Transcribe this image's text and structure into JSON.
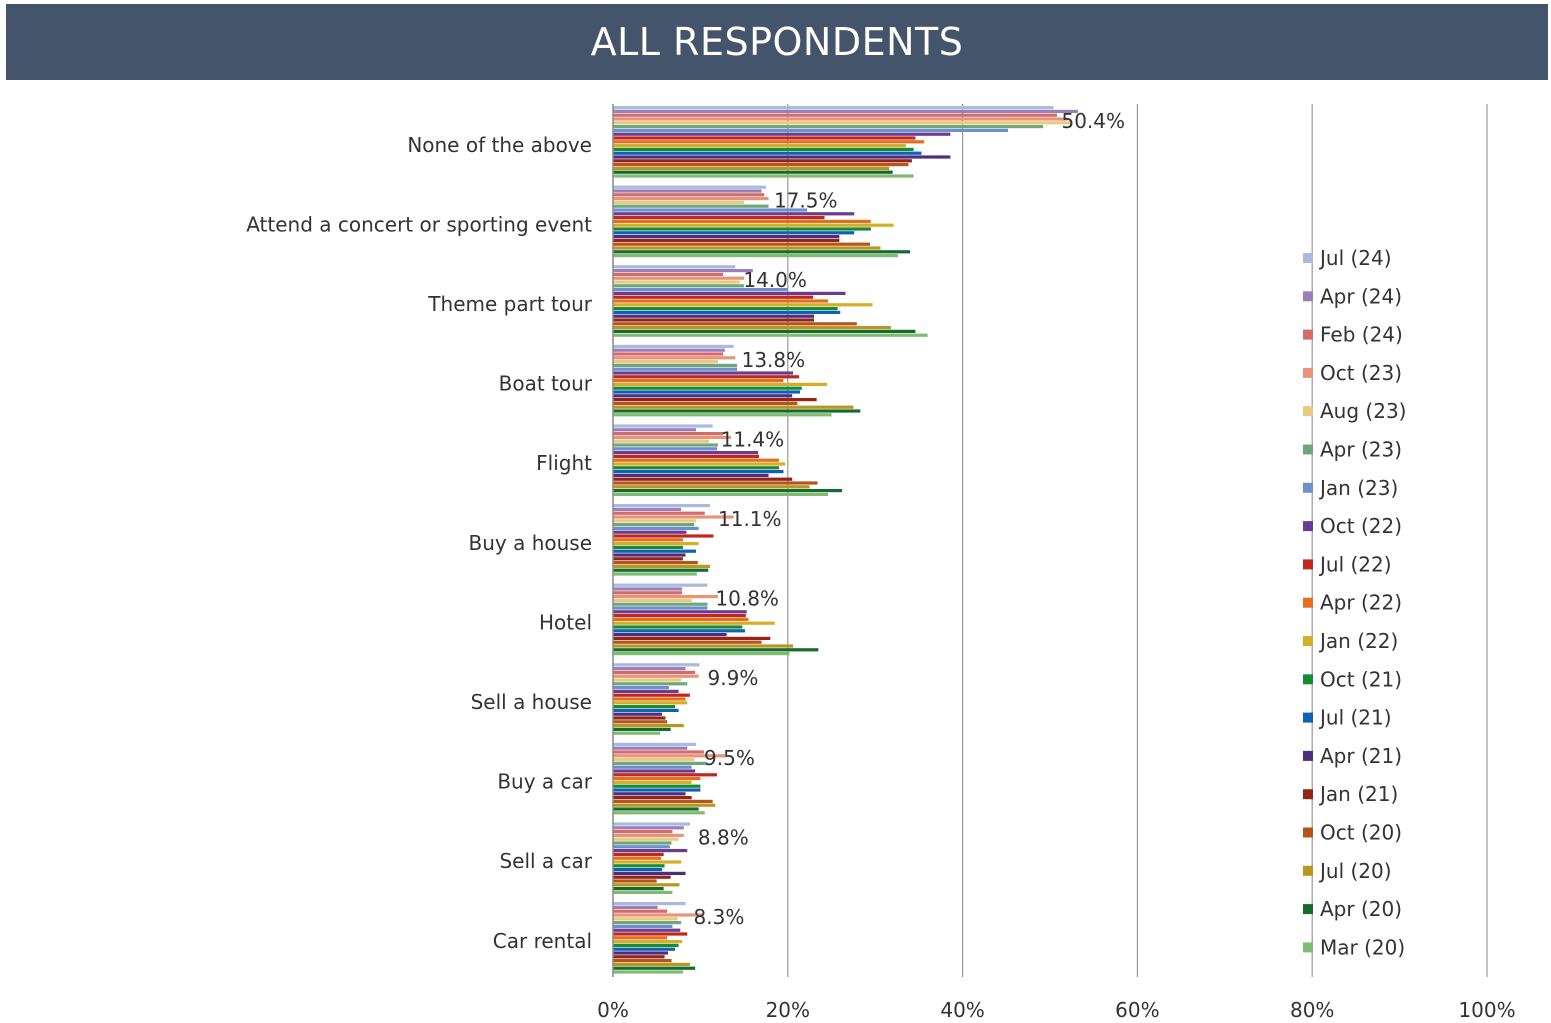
{
  "header": {
    "title": "ALL RESPONDENTS"
  },
  "chart_data": {
    "type": "bar",
    "orientation": "horizontal",
    "title": "ALL RESPONDENTS",
    "xlim": [
      0,
      100
    ],
    "x_ticks": [
      "0%",
      "20%",
      "40%",
      "60%",
      "80%",
      "100%"
    ],
    "grid": true,
    "legend_position": "right",
    "categories": [
      "None of the above",
      "Attend a concert or sporting event",
      "Theme part tour",
      "Boat tour",
      "Flight",
      "Buy a house",
      "Hotel",
      "Sell a house",
      "Buy a car",
      "Sell a car",
      "Car rental"
    ],
    "data_labels": [
      "50.4%",
      "17.5%",
      "14.0%",
      "13.8%",
      "11.4%",
      "11.1%",
      "10.8%",
      "9.9%",
      "9.5%",
      "8.8%",
      "8.3%"
    ],
    "series": [
      {
        "name": "Jul (24)",
        "color": "#aab9dd",
        "values": [
          50.4,
          17.5,
          14.0,
          13.8,
          11.4,
          11.1,
          10.8,
          9.9,
          9.5,
          8.8,
          8.3
        ]
      },
      {
        "name": "Apr (24)",
        "color": "#9b7fb8",
        "values": [
          53.2,
          17.0,
          16.0,
          12.8,
          9.5,
          7.8,
          7.9,
          8.3,
          8.5,
          8.1,
          5.1
        ]
      },
      {
        "name": "Feb (24)",
        "color": "#d46a6a",
        "values": [
          50.8,
          17.3,
          12.6,
          12.6,
          12.6,
          10.5,
          7.9,
          9.4,
          10.4,
          6.8,
          6.2
        ]
      },
      {
        "name": "Oct (23)",
        "color": "#e8937a",
        "values": [
          52.0,
          17.8,
          15.0,
          14.0,
          13.5,
          13.8,
          12.0,
          9.8,
          12.8,
          8.1,
          10.4
        ]
      },
      {
        "name": "Aug (23)",
        "color": "#e8cb7e",
        "values": [
          52.5,
          15.0,
          14.5,
          12.0,
          11.0,
          9.5,
          9.0,
          7.8,
          9.3,
          7.5,
          7.4
        ]
      },
      {
        "name": "Apr (23)",
        "color": "#6fa77b",
        "values": [
          49.2,
          17.8,
          15.0,
          14.2,
          12.0,
          9.3,
          10.8,
          8.5,
          10.8,
          6.7,
          7.8
        ]
      },
      {
        "name": "Jan (23)",
        "color": "#6e8fc9",
        "values": [
          45.2,
          22.2,
          20.0,
          14.2,
          11.9,
          9.8,
          10.8,
          6.4,
          9.0,
          6.5,
          6.8
        ]
      },
      {
        "name": "Oct (22)",
        "color": "#6a3b92",
        "values": [
          38.6,
          27.6,
          26.6,
          20.6,
          16.6,
          8.4,
          15.3,
          7.5,
          9.4,
          8.5,
          7.7
        ]
      },
      {
        "name": "Jul (22)",
        "color": "#c0281e",
        "values": [
          34.6,
          24.2,
          22.9,
          21.3,
          16.7,
          11.5,
          15.2,
          8.8,
          11.9,
          5.8,
          8.5
        ]
      },
      {
        "name": "Apr (22)",
        "color": "#e46d1e",
        "values": [
          35.6,
          29.5,
          24.6,
          19.5,
          19.0,
          8.0,
          15.5,
          8.3,
          10.0,
          5.5,
          6.2
        ]
      },
      {
        "name": "Jan (22)",
        "color": "#d4ae26",
        "values": [
          33.5,
          32.1,
          29.7,
          24.5,
          19.7,
          9.8,
          18.5,
          8.5,
          9.0,
          7.8,
          7.9
        ]
      },
      {
        "name": "Oct (21)",
        "color": "#178a34",
        "values": [
          34.4,
          29.5,
          25.7,
          21.6,
          19.0,
          8.0,
          14.8,
          7.1,
          10.0,
          5.9,
          7.5
        ]
      },
      {
        "name": "Jul (21)",
        "color": "#1060b3",
        "values": [
          35.3,
          27.6,
          26.0,
          21.4,
          19.5,
          9.5,
          15.1,
          7.5,
          10.0,
          5.6,
          7.1
        ]
      },
      {
        "name": "Apr (21)",
        "color": "#4d2e7e",
        "values": [
          38.6,
          25.9,
          23.0,
          20.5,
          17.8,
          8.3,
          13.0,
          5.6,
          8.3,
          8.3,
          6.3
        ]
      },
      {
        "name": "Jan (21)",
        "color": "#962318",
        "values": [
          34.2,
          25.9,
          23.0,
          23.3,
          20.5,
          8.0,
          18.0,
          6.0,
          9.0,
          6.6,
          5.9
        ]
      },
      {
        "name": "Oct (20)",
        "color": "#b4561c",
        "values": [
          33.8,
          29.4,
          27.9,
          21.1,
          23.4,
          9.7,
          17.0,
          6.2,
          11.4,
          5.0,
          6.7
        ]
      },
      {
        "name": "Jul (20)",
        "color": "#b8961f",
        "values": [
          31.6,
          30.6,
          31.8,
          27.5,
          22.5,
          11.1,
          20.6,
          8.1,
          11.7,
          7.6,
          8.8
        ]
      },
      {
        "name": "Apr (20)",
        "color": "#146b2b",
        "values": [
          32.0,
          34.0,
          34.6,
          28.3,
          26.2,
          10.9,
          23.5,
          6.6,
          9.8,
          5.8,
          9.4
        ]
      },
      {
        "name": "Mar (20)",
        "color": "#7fbb72",
        "values": [
          34.4,
          32.6,
          36.0,
          25.0,
          24.6,
          9.6,
          20.2,
          5.4,
          10.5,
          6.8,
          8.0
        ]
      }
    ]
  }
}
